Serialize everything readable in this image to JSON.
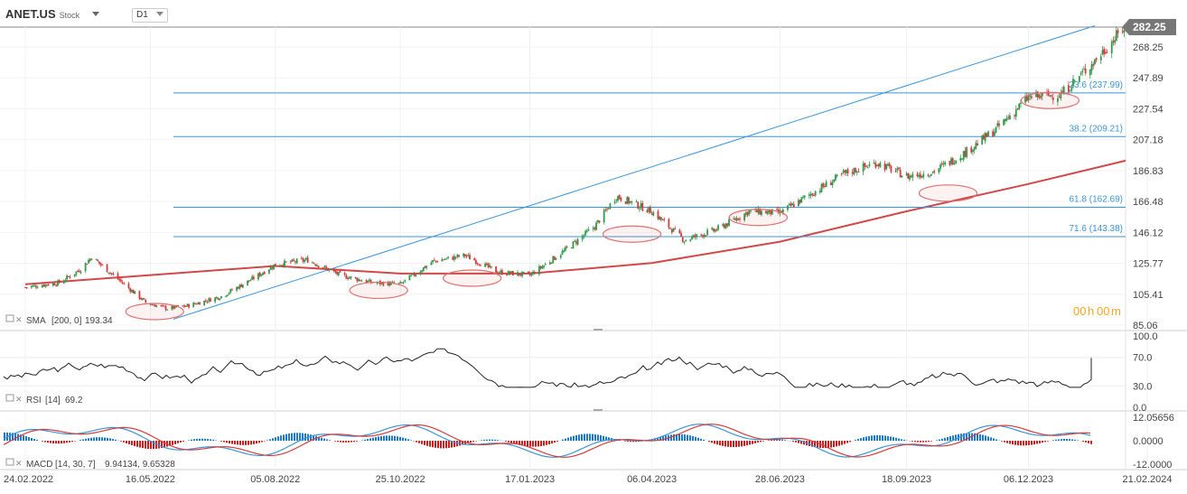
{
  "header": {
    "symbol": "ANET.US",
    "instrument_type": "Stock",
    "timeframe": "D1"
  },
  "price_pane": {
    "y_ticks": [
      "268.25",
      "247.89",
      "227.54",
      "207.18",
      "186.83",
      "166.48",
      "146.12",
      "125.77",
      "105.41",
      "85.06"
    ],
    "last_price": "282.25",
    "countdown": {
      "h": "00",
      "h_unit": "h",
      "m": "00",
      "m_unit": "m"
    },
    "indicator": {
      "name": "SMA",
      "params": "[200, 0]",
      "value": "193.34"
    },
    "fibonacci": [
      {
        "level": "23.6",
        "price": "237.99",
        "label": "23.6 (237.99)"
      },
      {
        "level": "38.2",
        "price": "209.21",
        "label": "38.2 (209.21)"
      },
      {
        "level": "61.8",
        "price": "162.69",
        "label": "61.8 (162.69)"
      },
      {
        "level": "71.6",
        "price": "143.38",
        "label": "71.6 (143.38)"
      }
    ]
  },
  "rsi_pane": {
    "indicator": {
      "name": "RSI",
      "params": "[14]",
      "value": "69.2"
    },
    "y_ticks": [
      "100.0",
      "70.0",
      "30.0",
      "0.0"
    ]
  },
  "macd_pane": {
    "indicator": {
      "name": "MACD",
      "params": "[14, 30, 7]",
      "value": "9.94134,  9.65328"
    },
    "y_ticks": [
      "12.05656",
      "0.0000",
      "-12.0000"
    ]
  },
  "x_axis": {
    "labels": [
      "24.02.2022",
      "16.05.2022",
      "05.08.2022",
      "25.10.2022",
      "17.01.2023",
      "06.04.2023",
      "28.06.2023",
      "18.09.2023",
      "06.12.2023",
      "21.02.2024"
    ]
  },
  "colors": {
    "sma": "#d04848",
    "fib": "#3a95d8",
    "trendline": "#3a95d8",
    "bull": "#2f9a4a",
    "bear": "#d23c3c",
    "macd_line": "#3a95d8",
    "macd_signal": "#d23c3c",
    "countdown": "#f5a623",
    "price_tag": "#777777"
  },
  "chart_data": {
    "type": "candlestick",
    "title": "ANET.US",
    "x_range": [
      "24.02.2022",
      "21.02.2024"
    ],
    "y_range": [
      85.06,
      282.25
    ],
    "series": [
      {
        "name": "ANET.US",
        "type": "ohlc_close",
        "points": [
          [
            "24.02.2022",
            110
          ],
          [
            "18.03.2022",
            113
          ],
          [
            "01.04.2022",
            122
          ],
          [
            "08.04.2022",
            130
          ],
          [
            "22.04.2022",
            118
          ],
          [
            "13.05.2022",
            100
          ],
          [
            "27.05.2022",
            96
          ],
          [
            "10.06.2022",
            98
          ],
          [
            "01.07.2022",
            104
          ],
          [
            "22.07.2022",
            116
          ],
          [
            "05.08.2022",
            125
          ],
          [
            "26.08.2022",
            128
          ],
          [
            "16.09.2022",
            118
          ],
          [
            "07.10.2022",
            113
          ],
          [
            "25.10.2022",
            112
          ],
          [
            "15.11.2022",
            127
          ],
          [
            "06.12.2022",
            131
          ],
          [
            "27.12.2022",
            120
          ],
          [
            "17.01.2023",
            118
          ],
          [
            "07.02.2023",
            133
          ],
          [
            "28.02.2023",
            150
          ],
          [
            "14.03.2023",
            170
          ],
          [
            "06.04.2023",
            160
          ],
          [
            "27.04.2023",
            141
          ],
          [
            "18.05.2023",
            148
          ],
          [
            "08.06.2023",
            160
          ],
          [
            "28.06.2023",
            159
          ],
          [
            "19.07.2023",
            172
          ],
          [
            "09.08.2023",
            185
          ],
          [
            "30.08.2023",
            192
          ],
          [
            "18.09.2023",
            183
          ],
          [
            "05.10.2023",
            186
          ],
          [
            "25.10.2023",
            198
          ],
          [
            "15.11.2023",
            214
          ],
          [
            "06.12.2023",
            235
          ],
          [
            "27.12.2023",
            237
          ],
          [
            "17.01.2024",
            258
          ],
          [
            "07.02.2024",
            282
          ]
        ]
      },
      {
        "name": "SMA [200, 0]",
        "type": "line",
        "points": [
          [
            "24.02.2022",
            112
          ],
          [
            "16.05.2022",
            118
          ],
          [
            "05.08.2022",
            124
          ],
          [
            "25.10.2022",
            119
          ],
          [
            "17.01.2023",
            119
          ],
          [
            "06.04.2023",
            126
          ],
          [
            "28.06.2023",
            140
          ],
          [
            "18.09.2023",
            160
          ],
          [
            "06.12.2023",
            178
          ],
          [
            "07.02.2024",
            193.34
          ]
        ]
      }
    ],
    "fibonacci_levels": [
      {
        "level": 23.6,
        "price": 237.99
      },
      {
        "level": 38.2,
        "price": 209.21
      },
      {
        "level": 61.8,
        "price": 162.69
      },
      {
        "level": 71.6,
        "price": 143.38
      }
    ],
    "rsi": {
      "params": [
        14
      ],
      "last": 69.2,
      "ylim": [
        0,
        100
      ],
      "levels": [
        30,
        70
      ]
    },
    "macd": {
      "params": [
        14,
        30,
        7
      ],
      "last": [
        9.94134,
        9.65328
      ],
      "ylim": [
        -12.0,
        12.05656
      ]
    }
  }
}
